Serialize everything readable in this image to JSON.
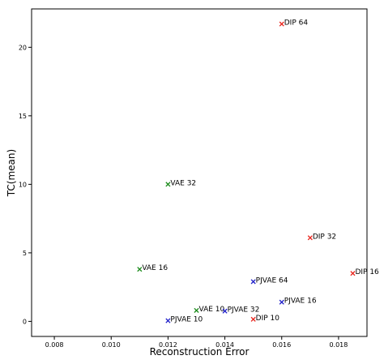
{
  "chart_data": {
    "type": "scatter",
    "title": "",
    "xlabel": "Reconstruction Error",
    "ylabel": "TC(mean)",
    "xlim": [
      0.0072,
      0.019
    ],
    "ylim": [
      -1.1,
      22.8
    ],
    "xticks": [
      {
        "value": 0.008,
        "label": "0.008"
      },
      {
        "value": 0.01,
        "label": "0.010"
      },
      {
        "value": 0.012,
        "label": "0.012"
      },
      {
        "value": 0.014,
        "label": "0.014"
      },
      {
        "value": 0.016,
        "label": "0.016"
      },
      {
        "value": 0.018,
        "label": "0.018"
      }
    ],
    "yticks": [
      {
        "value": 0,
        "label": "0"
      },
      {
        "value": 5,
        "label": "5"
      },
      {
        "value": 10,
        "label": "10"
      },
      {
        "value": 15,
        "label": "15"
      },
      {
        "value": 20,
        "label": "20"
      }
    ],
    "grid": false,
    "marker": "x",
    "colors": {
      "DIP": "#e8241c",
      "VAE": "#1a8a1a",
      "PJVAE": "#1c1cc8"
    },
    "points": [
      {
        "label": "DIP 64",
        "group": "DIP",
        "x": 0.016,
        "y": 21.7
      },
      {
        "label": "DIP 32",
        "group": "DIP",
        "x": 0.017,
        "y": 6.1
      },
      {
        "label": "DIP 16",
        "group": "DIP",
        "x": 0.0185,
        "y": 3.5
      },
      {
        "label": "DIP 10",
        "group": "DIP",
        "x": 0.015,
        "y": 0.15
      },
      {
        "label": "VAE 32",
        "group": "VAE",
        "x": 0.012,
        "y": 10.0
      },
      {
        "label": "VAE 16",
        "group": "VAE",
        "x": 0.011,
        "y": 3.8
      },
      {
        "label": "VAE 10",
        "group": "VAE",
        "x": 0.013,
        "y": 0.8
      },
      {
        "label": "PJVAE 64",
        "group": "PJVAE",
        "x": 0.015,
        "y": 2.9
      },
      {
        "label": "PJVAE 16",
        "group": "PJVAE",
        "x": 0.016,
        "y": 1.4
      },
      {
        "label": "PJVAE 32",
        "group": "PJVAE",
        "x": 0.014,
        "y": 0.75
      },
      {
        "label": "PJVAE 10",
        "group": "PJVAE",
        "x": 0.012,
        "y": 0.05
      }
    ]
  }
}
